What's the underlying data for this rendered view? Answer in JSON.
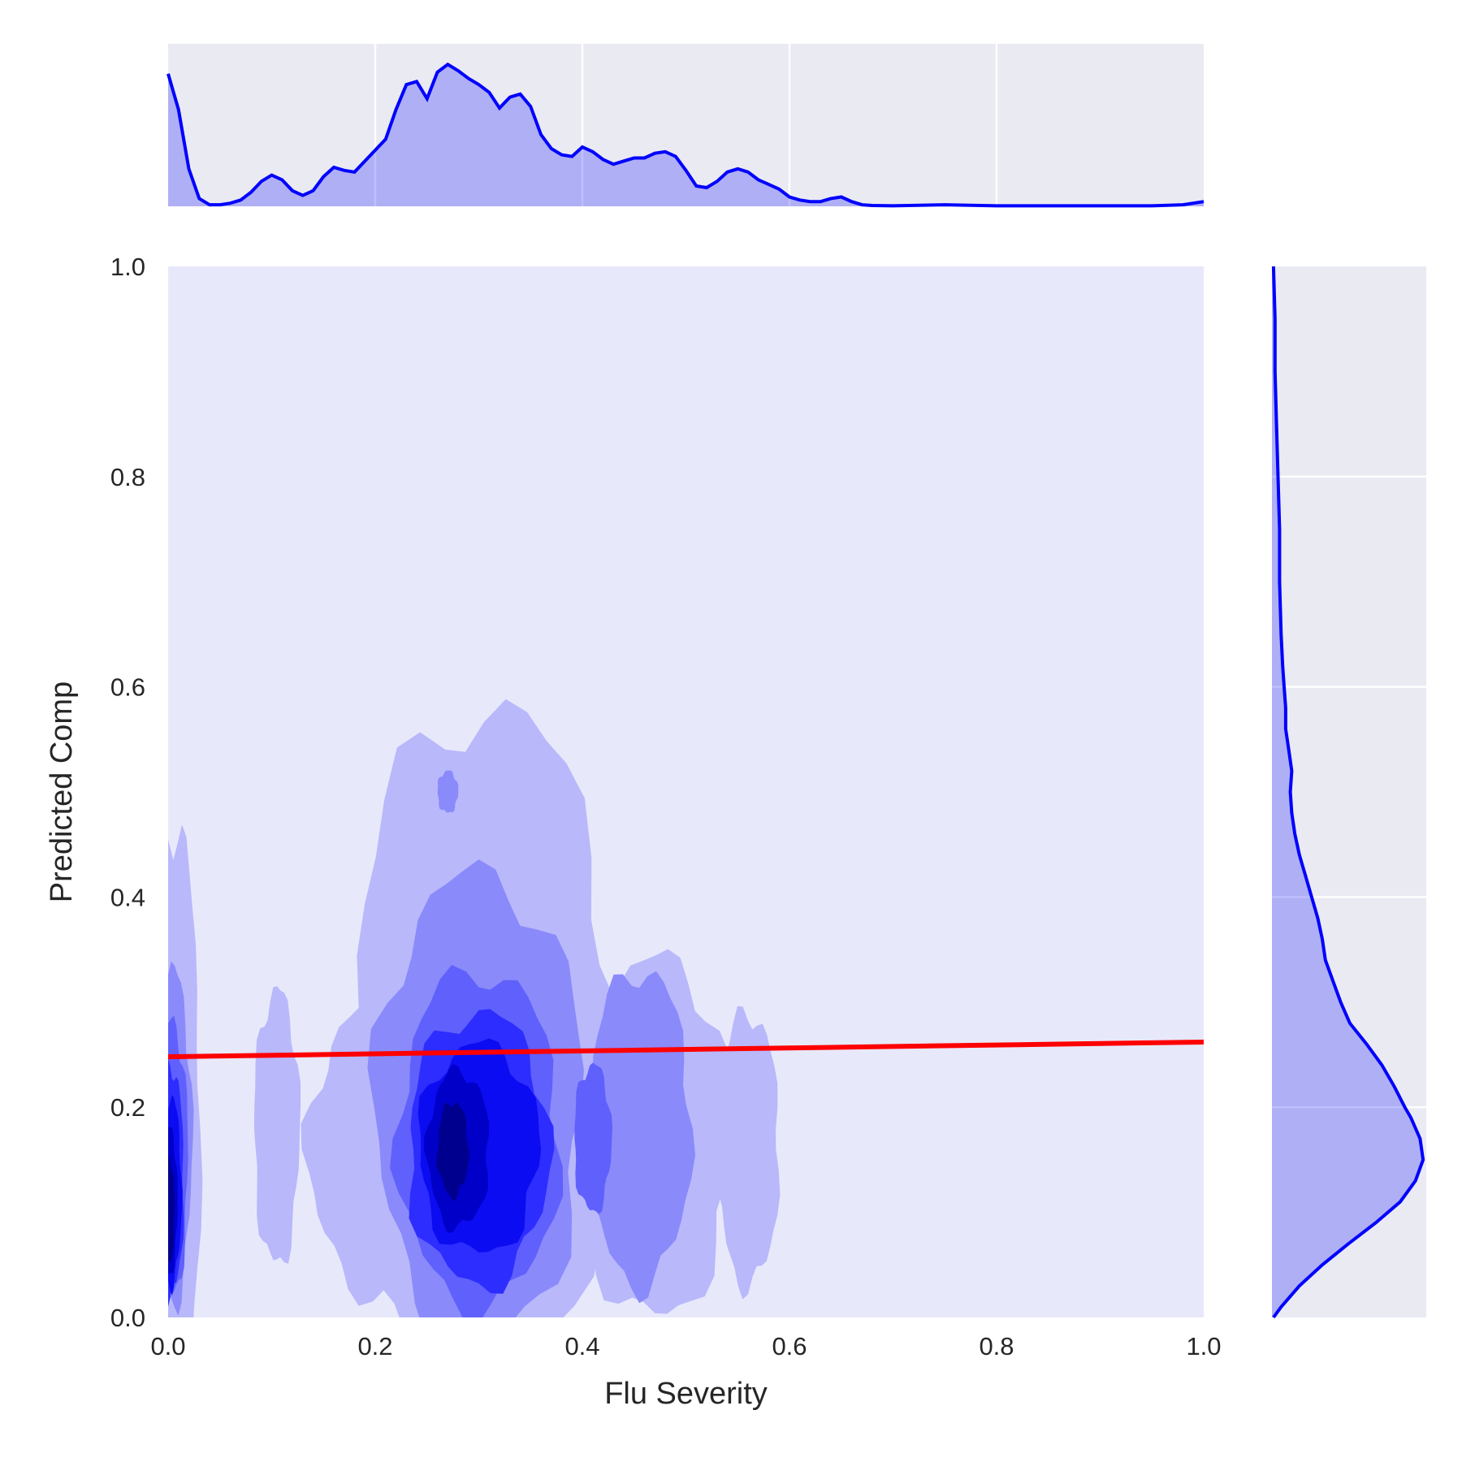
{
  "chart_data": {
    "type": "kde-joint",
    "xlabel": "Flu Severity",
    "ylabel": "Predicted Comp",
    "xlim": [
      0.0,
      1.0
    ],
    "ylim": [
      0.0,
      1.0
    ],
    "xticks": [
      "0.0",
      "0.2",
      "0.4",
      "0.6",
      "0.8",
      "1.0"
    ],
    "yticks": [
      "0.0",
      "0.2",
      "0.4",
      "0.6",
      "0.8",
      "1.0"
    ],
    "regression_line": {
      "x": [
        0.0,
        1.0
      ],
      "y": [
        0.248,
        0.262
      ],
      "color": "#ff0000"
    },
    "contour_levels": [
      {
        "level": 1,
        "color": "#b8b8fb",
        "regions": [
          {
            "cx": 0.005,
            "cy": 0.18,
            "rx": 0.026,
            "ry": 0.29
          },
          {
            "cx": 0.105,
            "cy": 0.18,
            "rx": 0.022,
            "ry": 0.13
          },
          {
            "cx": 0.21,
            "cy": 0.16,
            "rx": 0.075,
            "ry": 0.14
          },
          {
            "cx": 0.305,
            "cy": 0.24,
            "rx": 0.13,
            "ry": 0.34
          },
          {
            "cx": 0.47,
            "cy": 0.17,
            "rx": 0.075,
            "ry": 0.17
          },
          {
            "cx": 0.56,
            "cy": 0.16,
            "rx": 0.03,
            "ry": 0.13
          }
        ]
      },
      {
        "level": 2,
        "color": "#8a8afb",
        "regions": [
          {
            "cx": 0.003,
            "cy": 0.17,
            "rx": 0.02,
            "ry": 0.16
          },
          {
            "cx": 0.3,
            "cy": 0.2,
            "rx": 0.1,
            "ry": 0.22
          },
          {
            "cx": 0.455,
            "cy": 0.18,
            "rx": 0.05,
            "ry": 0.15
          },
          {
            "cx": 0.27,
            "cy": 0.5,
            "rx": 0.01,
            "ry": 0.02
          }
        ]
      },
      {
        "level": 3,
        "color": "#6060fd",
        "regions": [
          {
            "cx": 0.003,
            "cy": 0.15,
            "rx": 0.016,
            "ry": 0.13
          },
          {
            "cx": 0.3,
            "cy": 0.17,
            "rx": 0.078,
            "ry": 0.16
          },
          {
            "cx": 0.41,
            "cy": 0.17,
            "rx": 0.018,
            "ry": 0.07
          }
        ]
      },
      {
        "level": 4,
        "color": "#2d2dff",
        "regions": [
          {
            "cx": 0.002,
            "cy": 0.13,
            "rx": 0.013,
            "ry": 0.11
          },
          {
            "cx": 0.3,
            "cy": 0.16,
            "rx": 0.068,
            "ry": 0.13
          }
        ]
      },
      {
        "level": 5,
        "color": "#0c0cf2",
        "regions": [
          {
            "cx": 0.002,
            "cy": 0.12,
            "rx": 0.011,
            "ry": 0.09
          },
          {
            "cx": 0.3,
            "cy": 0.16,
            "rx": 0.058,
            "ry": 0.1
          }
        ]
      },
      {
        "level": 6,
        "color": "#0000c8",
        "regions": [
          {
            "cx": 0.001,
            "cy": 0.11,
            "rx": 0.008,
            "ry": 0.07
          },
          {
            "cx": 0.28,
            "cy": 0.16,
            "rx": 0.03,
            "ry": 0.075
          }
        ]
      },
      {
        "level": 7,
        "color": "#00008e",
        "regions": [
          {
            "cx": 0.001,
            "cy": 0.1,
            "rx": 0.005,
            "ry": 0.05
          },
          {
            "cx": 0.275,
            "cy": 0.16,
            "rx": 0.015,
            "ry": 0.045
          }
        ]
      }
    ],
    "marginal_x": {
      "x": [
        0.0,
        0.01,
        0.02,
        0.03,
        0.04,
        0.05,
        0.06,
        0.07,
        0.08,
        0.09,
        0.1,
        0.11,
        0.12,
        0.13,
        0.14,
        0.15,
        0.16,
        0.17,
        0.18,
        0.19,
        0.2,
        0.21,
        0.22,
        0.23,
        0.24,
        0.25,
        0.26,
        0.27,
        0.28,
        0.29,
        0.3,
        0.31,
        0.32,
        0.33,
        0.34,
        0.35,
        0.36,
        0.37,
        0.38,
        0.39,
        0.4,
        0.41,
        0.42,
        0.43,
        0.44,
        0.45,
        0.46,
        0.47,
        0.48,
        0.49,
        0.5,
        0.51,
        0.52,
        0.53,
        0.54,
        0.55,
        0.56,
        0.57,
        0.58,
        0.59,
        0.6,
        0.61,
        0.62,
        0.63,
        0.64,
        0.65,
        0.66,
        0.67,
        0.68,
        0.7,
        0.75,
        0.8,
        0.85,
        0.9,
        0.95,
        0.98,
        1.0
      ],
      "y": [
        0.85,
        0.62,
        0.24,
        0.05,
        0.01,
        0.01,
        0.02,
        0.04,
        0.09,
        0.16,
        0.2,
        0.17,
        0.1,
        0.07,
        0.1,
        0.19,
        0.25,
        0.23,
        0.22,
        0.29,
        0.36,
        0.43,
        0.62,
        0.78,
        0.8,
        0.69,
        0.86,
        0.91,
        0.87,
        0.82,
        0.78,
        0.73,
        0.63,
        0.7,
        0.72,
        0.64,
        0.46,
        0.37,
        0.33,
        0.32,
        0.38,
        0.35,
        0.3,
        0.27,
        0.29,
        0.31,
        0.31,
        0.34,
        0.35,
        0.32,
        0.23,
        0.13,
        0.12,
        0.16,
        0.22,
        0.24,
        0.22,
        0.17,
        0.14,
        0.11,
        0.06,
        0.04,
        0.03,
        0.03,
        0.05,
        0.06,
        0.03,
        0.01,
        0.005,
        0.003,
        0.01,
        0.003,
        0.003,
        0.003,
        0.003,
        0.01,
        0.03
      ]
    },
    "marginal_y": {
      "y": [
        0.0,
        0.01,
        0.03,
        0.05,
        0.07,
        0.09,
        0.11,
        0.13,
        0.15,
        0.17,
        0.19,
        0.2,
        0.22,
        0.24,
        0.26,
        0.28,
        0.3,
        0.32,
        0.34,
        0.36,
        0.38,
        0.4,
        0.42,
        0.44,
        0.46,
        0.48,
        0.5,
        0.52,
        0.54,
        0.56,
        0.58,
        0.6,
        0.62,
        0.65,
        0.7,
        0.75,
        0.8,
        0.85,
        0.9,
        0.95,
        1.0
      ],
      "x": [
        0.01,
        0.06,
        0.18,
        0.33,
        0.5,
        0.68,
        0.84,
        0.94,
        0.99,
        0.97,
        0.91,
        0.87,
        0.8,
        0.72,
        0.62,
        0.51,
        0.45,
        0.4,
        0.35,
        0.33,
        0.3,
        0.26,
        0.22,
        0.18,
        0.15,
        0.13,
        0.12,
        0.13,
        0.11,
        0.09,
        0.09,
        0.08,
        0.07,
        0.06,
        0.05,
        0.05,
        0.04,
        0.03,
        0.02,
        0.02,
        0.01
      ]
    }
  }
}
